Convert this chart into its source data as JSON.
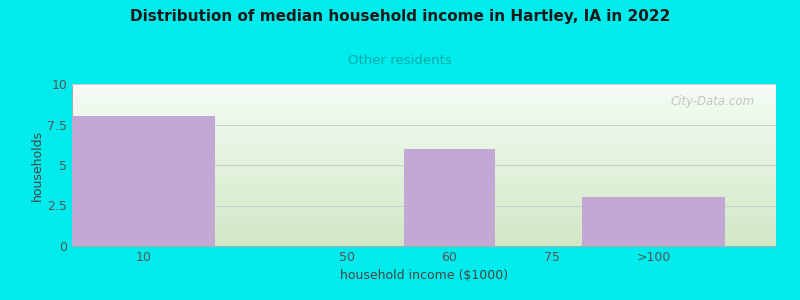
{
  "title": "Distribution of median household income in Hartley, IA in 2022",
  "subtitle": "Other residents",
  "xlabel": "household income ($1000)",
  "ylabel": "households",
  "categories": [
    "10",
    "50",
    "60",
    "75",
    ">100"
  ],
  "bar_centers": [
    0,
    2,
    3,
    4,
    5
  ],
  "bar_values": [
    8,
    0,
    6,
    0,
    3
  ],
  "bar_color": "#c4a8d4",
  "background_color": "#00ecec",
  "plot_bg_top_right": "#f0f8f0",
  "plot_bg_bottom_left": "#d4edcc",
  "title_color": "#1a1a1a",
  "subtitle_color": "#00aaaa",
  "axis_label_color": "#444444",
  "tick_label_color": "#555555",
  "ylim": [
    0,
    10
  ],
  "yticks": [
    0,
    2.5,
    5,
    7.5,
    10
  ],
  "grid_color": "#cccccc",
  "watermark": "City-Data.com",
  "watermark_color": "#b0b0b0"
}
